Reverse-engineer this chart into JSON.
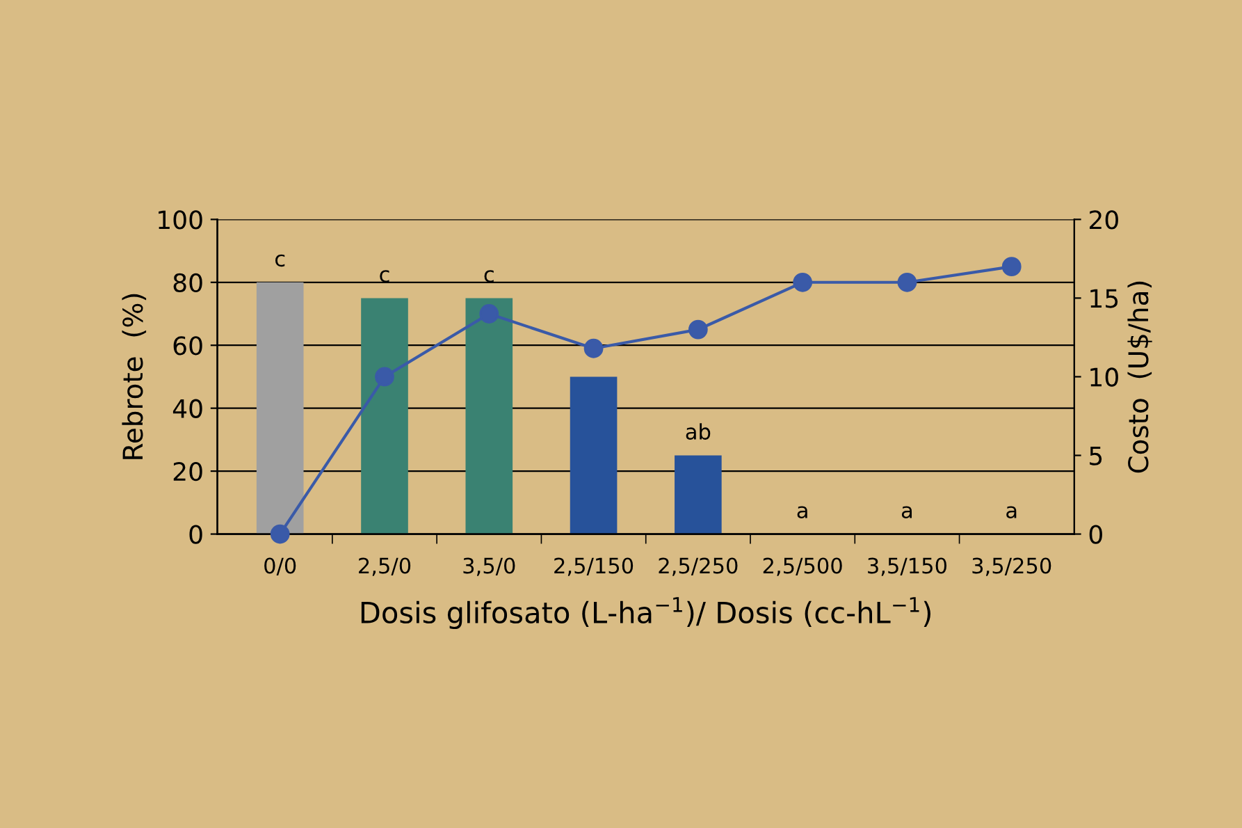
{
  "chart_data": {
    "type": "bar",
    "xlabel": "Dosis glifosato (L-ha$^{−1}$)/ Dosis (cc-hL$^{−1}$)",
    "ylabel": "Rebrote  (%)",
    "y2label": "Costo  (U$/ha)",
    "categories": [
      "0/0",
      "2,5/0",
      "3,5/0",
      "2,5/150",
      "2,5/250",
      "2,5/500",
      "3,5/150",
      "3,5/250"
    ],
    "series": [
      {
        "values": [
          80,
          75,
          75,
          50,
          25,
          0,
          0,
          0
        ],
        "value_labels": [
          "c",
          "c",
          "c",
          null,
          "ab",
          "a",
          "a",
          "a"
        ],
        "colors": [
          "#a0a0a0",
          "#3a8272",
          "#3a8272",
          "#27529a",
          "#27529a",
          "#27529a",
          "#27529a",
          "#27529a"
        ]
      },
      {
        "type": "line",
        "axis": "y2",
        "color": "#3a5aa8",
        "marker": "circle",
        "values": [
          0,
          10,
          14,
          11.8,
          13,
          16,
          16,
          17
        ]
      }
    ],
    "ylim": [
      0,
      100
    ],
    "yticks": [
      0,
      20,
      40,
      60,
      80,
      100
    ],
    "y2lim": [
      0,
      20
    ],
    "y2ticks": [
      0,
      5,
      10,
      15,
      20
    ],
    "grid": "y"
  }
}
